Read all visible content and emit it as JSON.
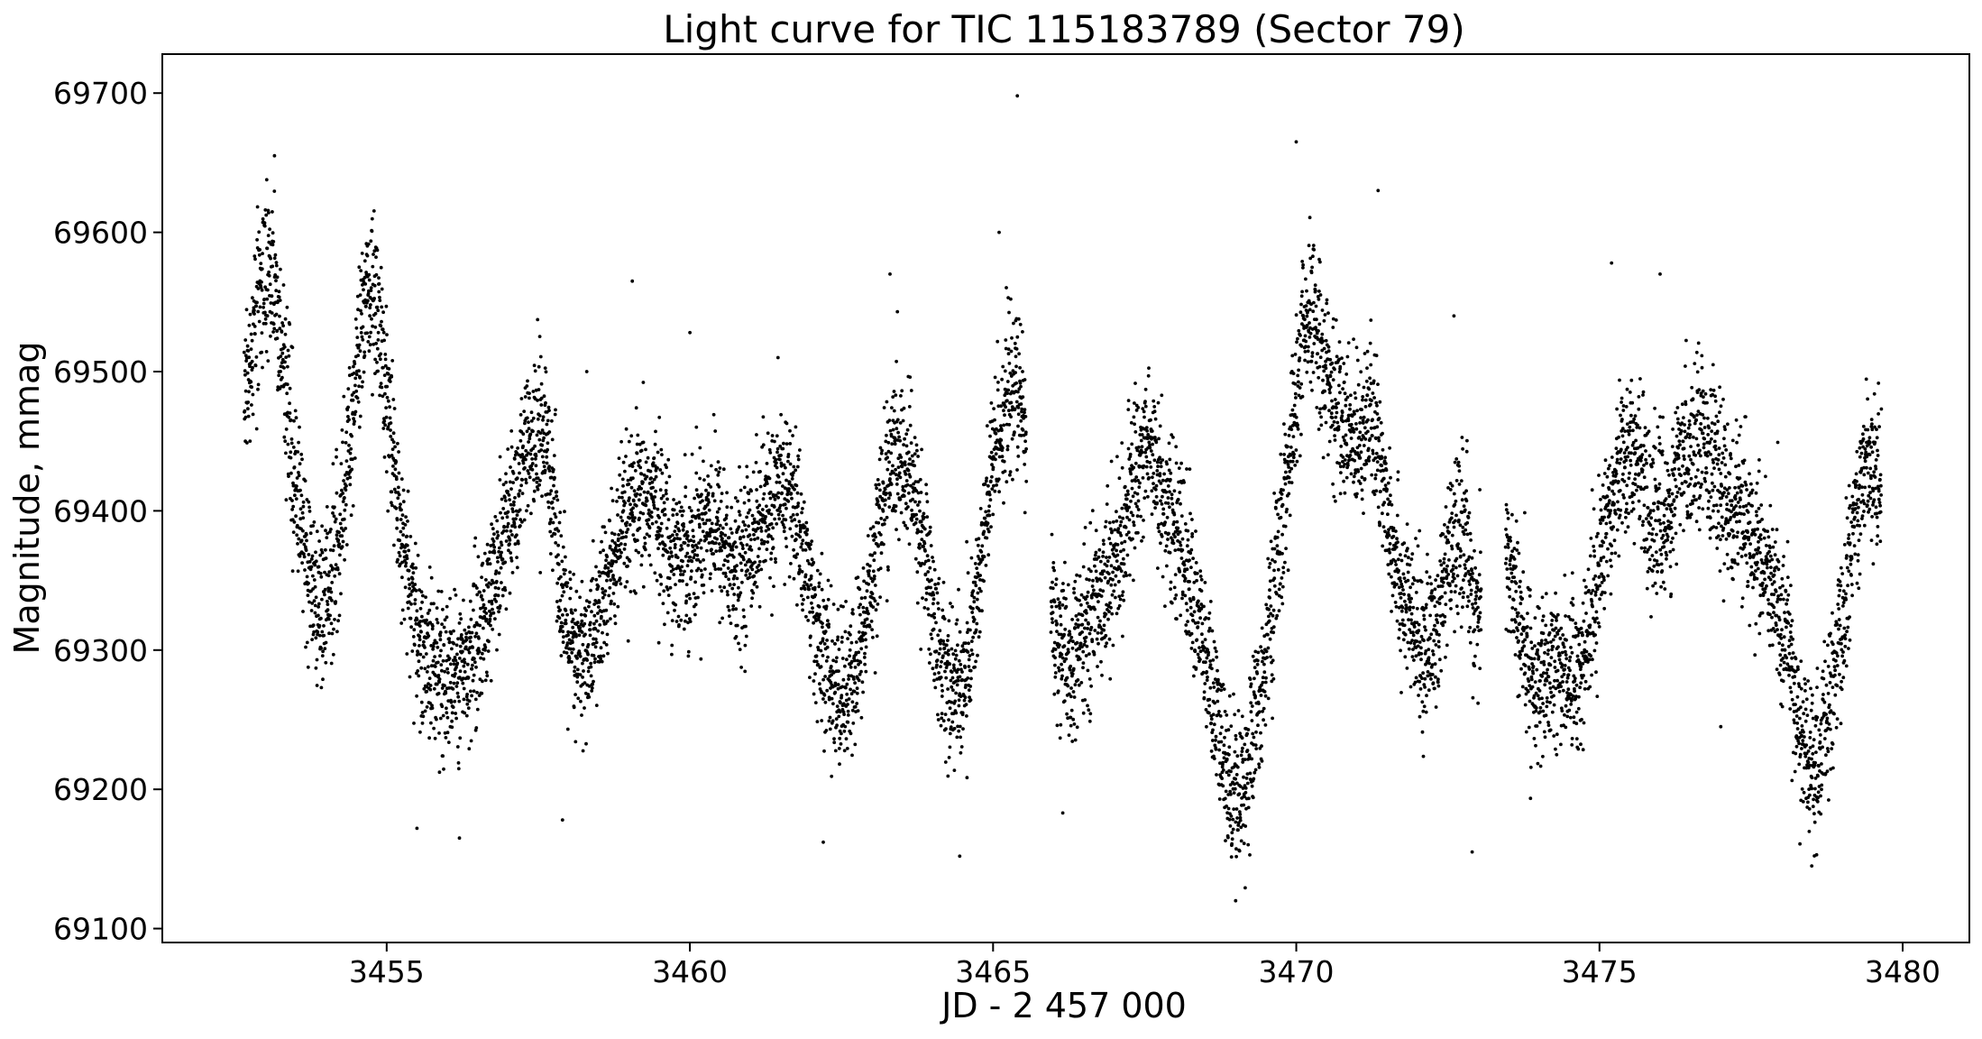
{
  "chart_data": {
    "type": "scatter",
    "title": "Light curve for TIC 115183789 (Sector 79)",
    "xlabel": "JD - 2 457 000",
    "ylabel": "Magnitude, mmag",
    "xlim": [
      3451.3,
      3481.1
    ],
    "ylim": [
      69090,
      69728
    ],
    "xticks": [
      3455,
      3460,
      3465,
      3470,
      3475,
      3480
    ],
    "yticks": [
      69100,
      69200,
      69300,
      69400,
      69500,
      69600,
      69700
    ],
    "grid": false,
    "legend": "none",
    "marker_color": "#000000",
    "trend_points": [
      [
        3452.65,
        69480
      ],
      [
        3452.85,
        69540
      ],
      [
        3453.0,
        69575
      ],
      [
        3453.15,
        69560
      ],
      [
        3453.35,
        69480
      ],
      [
        3453.5,
        69420
      ],
      [
        3453.65,
        69370
      ],
      [
        3453.85,
        69340
      ],
      [
        3454.0,
        69330
      ],
      [
        3454.2,
        69380
      ],
      [
        3454.45,
        69470
      ],
      [
        3454.65,
        69550
      ],
      [
        3454.8,
        69560
      ],
      [
        3455.0,
        69490
      ],
      [
        3455.2,
        69400
      ],
      [
        3455.45,
        69320
      ],
      [
        3455.7,
        69290
      ],
      [
        3456.0,
        69280
      ],
      [
        3456.25,
        69290
      ],
      [
        3456.55,
        69310
      ],
      [
        3456.8,
        69360
      ],
      [
        3457.05,
        69400
      ],
      [
        3457.35,
        69440
      ],
      [
        3457.55,
        69460
      ],
      [
        3457.75,
        69420
      ],
      [
        3457.9,
        69330
      ],
      [
        3458.1,
        69290
      ],
      [
        3458.35,
        69300
      ],
      [
        3458.6,
        69340
      ],
      [
        3458.85,
        69380
      ],
      [
        3459.1,
        69400
      ],
      [
        3459.4,
        69410
      ],
      [
        3459.7,
        69370
      ],
      [
        3460.0,
        69370
      ],
      [
        3460.3,
        69400
      ],
      [
        3460.55,
        69380
      ],
      [
        3460.75,
        69350
      ],
      [
        3461.0,
        69380
      ],
      [
        3461.3,
        69400
      ],
      [
        3461.6,
        69420
      ],
      [
        3461.85,
        69380
      ],
      [
        3462.1,
        69310
      ],
      [
        3462.4,
        69270
      ],
      [
        3462.65,
        69270
      ],
      [
        3462.9,
        69320
      ],
      [
        3463.15,
        69400
      ],
      [
        3463.35,
        69440
      ],
      [
        3463.6,
        69430
      ],
      [
        3463.85,
        69380
      ],
      [
        3464.1,
        69300
      ],
      [
        3464.35,
        69270
      ],
      [
        3464.55,
        69280
      ],
      [
        3464.8,
        69360
      ],
      [
        3465.05,
        69450
      ],
      [
        3465.3,
        69490
      ],
      [
        3465.45,
        69480
      ],
      [
        3466.0,
        69320
      ],
      [
        3466.25,
        69280
      ],
      [
        3466.55,
        69320
      ],
      [
        3466.85,
        69350
      ],
      [
        3467.1,
        69370
      ],
      [
        3467.35,
        69430
      ],
      [
        3467.6,
        69450
      ],
      [
        3467.85,
        69400
      ],
      [
        3468.1,
        69380
      ],
      [
        3468.35,
        69330
      ],
      [
        3468.6,
        69270
      ],
      [
        3468.85,
        69210
      ],
      [
        3469.1,
        69200
      ],
      [
        3469.35,
        69250
      ],
      [
        3469.6,
        69330
      ],
      [
        3469.85,
        69420
      ],
      [
        3470.1,
        69520
      ],
      [
        3470.3,
        69540
      ],
      [
        3470.6,
        69480
      ],
      [
        3470.9,
        69450
      ],
      [
        3471.2,
        69470
      ],
      [
        3471.45,
        69420
      ],
      [
        3471.75,
        69340
      ],
      [
        3472.05,
        69300
      ],
      [
        3472.3,
        69310
      ],
      [
        3472.55,
        69370
      ],
      [
        3472.75,
        69390
      ],
      [
        3473.0,
        69320
      ],
      [
        3473.5,
        69370
      ],
      [
        3473.75,
        69300
      ],
      [
        3474.05,
        69270
      ],
      [
        3474.35,
        69290
      ],
      [
        3474.65,
        69280
      ],
      [
        3474.9,
        69330
      ],
      [
        3475.1,
        69390
      ],
      [
        3475.35,
        69440
      ],
      [
        3475.6,
        69440
      ],
      [
        3475.85,
        69400
      ],
      [
        3476.1,
        69390
      ],
      [
        3476.4,
        69440
      ],
      [
        3476.7,
        69460
      ],
      [
        3476.95,
        69420
      ],
      [
        3477.25,
        69400
      ],
      [
        3477.55,
        69380
      ],
      [
        3477.85,
        69340
      ],
      [
        3478.1,
        69310
      ],
      [
        3478.3,
        69240
      ],
      [
        3478.55,
        69210
      ],
      [
        3478.8,
        69260
      ],
      [
        3479.05,
        69330
      ],
      [
        3479.25,
        69410
      ],
      [
        3479.45,
        69440
      ],
      [
        3479.65,
        69420
      ]
    ],
    "gaps": [
      [
        3465.55,
        3465.95
      ],
      [
        3473.05,
        3473.45
      ]
    ],
    "scatter_sigma": 28,
    "outliers": [
      [
        3465.4,
        69698
      ],
      [
        3471.35,
        69630
      ],
      [
        3470.0,
        69665
      ],
      [
        3453.15,
        69655
      ],
      [
        3458.3,
        69500
      ],
      [
        3459.05,
        69565
      ],
      [
        3460.0,
        69528
      ],
      [
        3463.3,
        69570
      ],
      [
        3465.1,
        69600
      ],
      [
        3475.2,
        69578
      ],
      [
        3476.0,
        69570
      ],
      [
        3472.6,
        69540
      ],
      [
        3469.0,
        69120
      ],
      [
        3472.9,
        69155
      ],
      [
        3464.45,
        69152
      ],
      [
        3456.2,
        69165
      ],
      [
        3478.5,
        69145
      ],
      [
        3462.2,
        69162
      ],
      [
        3457.9,
        69178
      ],
      [
        3466.15,
        69183
      ],
      [
        3477.0,
        69245
      ],
      [
        3455.5,
        69172
      ]
    ]
  }
}
